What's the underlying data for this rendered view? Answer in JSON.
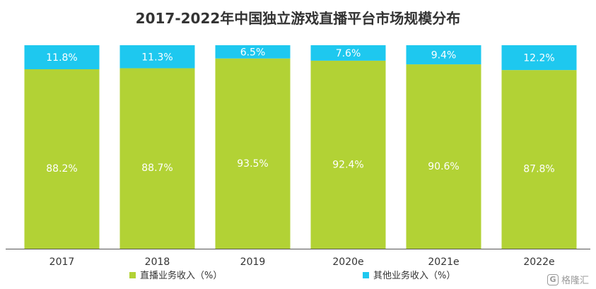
{
  "chart_data": {
    "type": "bar",
    "stacked": true,
    "title": "2017-2022年中国独立游戏直播平台市场规模分布",
    "categories": [
      "2017",
      "2018",
      "2019",
      "2020e",
      "2021e",
      "2022e"
    ],
    "series": [
      {
        "name": "直播业务收入（%）",
        "color": "#b2d235",
        "values": [
          88.2,
          88.7,
          93.5,
          92.4,
          90.6,
          87.8
        ],
        "labels": [
          "88.2%",
          "88.7%",
          "93.5%",
          "92.4%",
          "90.6%",
          "87.8%"
        ]
      },
      {
        "name": "其他业务收入（%）",
        "color": "#1ec8ef",
        "values": [
          11.8,
          11.3,
          6.5,
          7.6,
          9.4,
          12.2
        ],
        "labels": [
          "11.8%",
          "11.3%",
          "6.5%",
          "7.6%",
          "9.4%",
          "12.2%"
        ]
      }
    ],
    "ylim": [
      0,
      100
    ],
    "grid": false,
    "legend_position": "bottom"
  },
  "watermark": {
    "logo_text": "G",
    "text": "格隆汇"
  }
}
